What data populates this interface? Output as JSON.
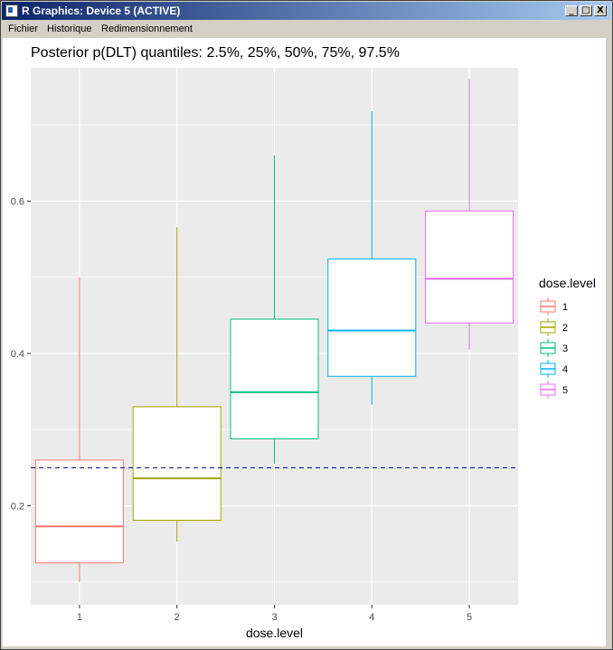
{
  "window": {
    "title": "R Graphics: Device 5 (ACTIVE)",
    "buttons": {
      "minimize": "_",
      "maximize": "□",
      "close": "X"
    }
  },
  "menu": {
    "items": [
      "Fichier",
      "Historique",
      "Redimensionnement"
    ]
  },
  "chart_data": {
    "type": "boxplot",
    "title": "Posterior p(DLT) quantiles: 2.5%, 25%, 50%, 75%, 97.5%",
    "xlabel": "dose.level",
    "ylabel": "",
    "categories": [
      "1",
      "2",
      "3",
      "4",
      "5"
    ],
    "ylim": [
      0.07,
      0.775
    ],
    "y_ticks": [
      0.2,
      0.4,
      0.6
    ],
    "y_tick_labels": [
      "0.2",
      "0.4",
      "0.6"
    ],
    "grid": true,
    "reference_line": {
      "y": 0.25,
      "style": "dashed",
      "color": "#00008b"
    },
    "legend": {
      "title": "dose.level",
      "position": "right"
    },
    "series": [
      {
        "name": "1",
        "color": "#f8766d",
        "q025": 0.1,
        "q25": 0.125,
        "q50": 0.173,
        "q75": 0.26,
        "q975": 0.5
      },
      {
        "name": "2",
        "color": "#a3a500",
        "q025": 0.153,
        "q25": 0.181,
        "q50": 0.236,
        "q75": 0.33,
        "q975": 0.566
      },
      {
        "name": "3",
        "color": "#00bf7d",
        "q025": 0.255,
        "q25": 0.288,
        "q50": 0.349,
        "q75": 0.445,
        "q975": 0.66
      },
      {
        "name": "4",
        "color": "#00b0f6",
        "q025": 0.333,
        "q25": 0.37,
        "q50": 0.43,
        "q75": 0.524,
        "q975": 0.718
      },
      {
        "name": "5",
        "color": "#e76bf3",
        "q025": 0.405,
        "q25": 0.44,
        "q50": 0.498,
        "q75": 0.587,
        "q975": 0.76
      }
    ]
  }
}
